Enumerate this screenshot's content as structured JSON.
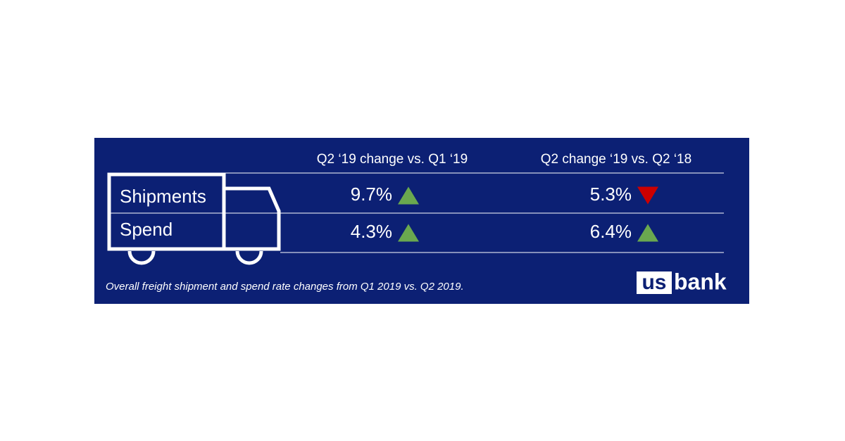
{
  "table": {
    "columns": [
      "Q2 ‘19 change vs. Q1 ‘19",
      "Q2 change ‘19 vs. Q2 ‘18"
    ],
    "rows": [
      {
        "label": "Shipments",
        "cells": [
          {
            "text": "9.7%",
            "direction": "up"
          },
          {
            "text": "5.3%",
            "direction": "down"
          }
        ]
      },
      {
        "label": "Spend",
        "cells": [
          {
            "text": "4.3%",
            "direction": "up"
          },
          {
            "text": "6.4%",
            "direction": "up"
          }
        ]
      }
    ]
  },
  "caption": "Overall freight shipment and spend rate changes from Q1 2019 vs. Q2 2019.",
  "logo": {
    "left": "us",
    "right": "bank"
  },
  "colors": {
    "up": "#6aa84f",
    "down": "#cc0000"
  }
}
